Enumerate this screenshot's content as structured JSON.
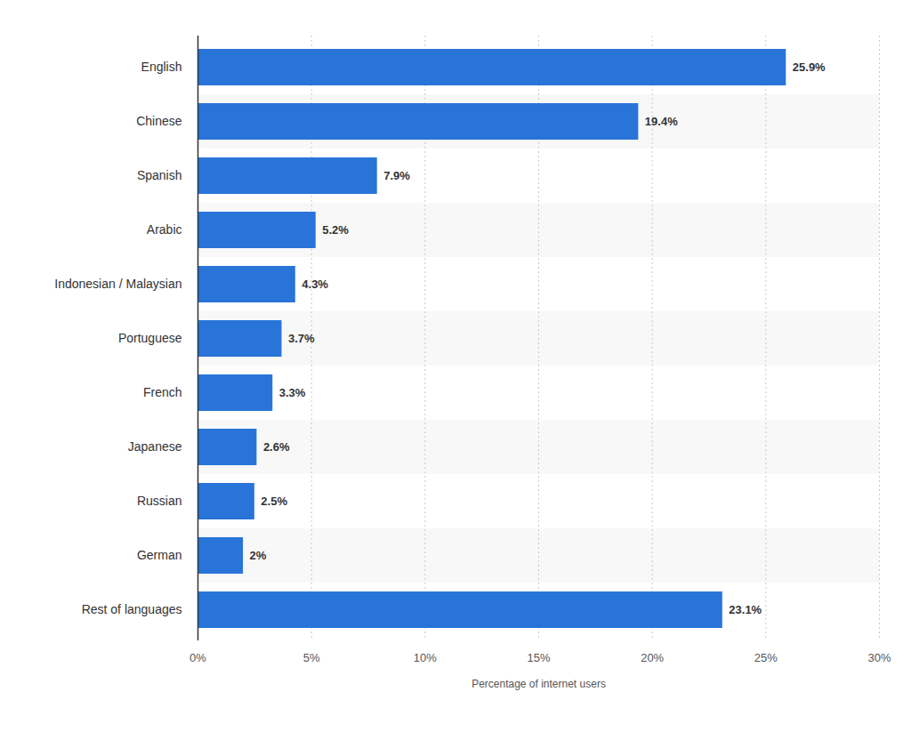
{
  "chart_data": {
    "type": "bar",
    "orientation": "horizontal",
    "x_label": "Percentage of internet users",
    "categories": [
      "English",
      "Chinese",
      "Spanish",
      "Arabic",
      "Indonesian / Malaysian",
      "Portuguese",
      "French",
      "Japanese",
      "Russian",
      "German",
      "Rest of languages"
    ],
    "values": [
      25.9,
      19.4,
      7.9,
      5.2,
      4.3,
      3.7,
      3.3,
      2.6,
      2.5,
      2,
      23.1
    ],
    "value_labels": [
      "25.9%",
      "19.4%",
      "7.9%",
      "5.2%",
      "4.3%",
      "3.7%",
      "3.3%",
      "2.6%",
      "2.5%",
      "2%",
      "23.1%"
    ],
    "data_labels": true,
    "color": "#2874d9",
    "xlim": [
      0,
      30
    ],
    "xticks": [
      {
        "value": 0,
        "label": "0%"
      },
      {
        "value": 5,
        "label": "5%"
      },
      {
        "value": 10,
        "label": "10%"
      },
      {
        "value": 15,
        "label": "15%"
      },
      {
        "value": 20,
        "label": "20%"
      },
      {
        "value": 25,
        "label": "25%"
      },
      {
        "value": 30,
        "label": "30%"
      }
    ],
    "grid": true
  }
}
